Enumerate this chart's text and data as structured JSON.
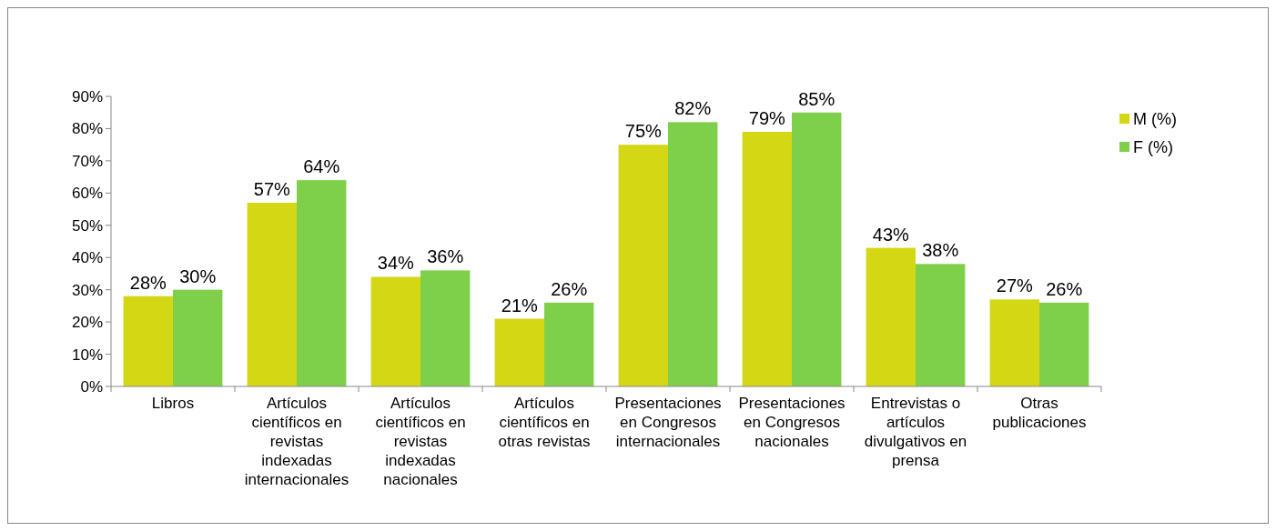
{
  "chart_data": {
    "type": "bar",
    "categories": [
      "Libros",
      "Artículos científicos en revistas indexadas internacionales",
      "Artículos científicos en revistas indexadas nacionales",
      "Artículos científicos en otras revistas",
      "Presentaciones en Congresos internacionales",
      "Presentaciones en Congresos nacionales",
      "Entrevistas o artículos divulgativos en prensa",
      "Otras publicaciones"
    ],
    "series": [
      {
        "name": "M (%)",
        "color": "#d4d714",
        "values": [
          28,
          57,
          34,
          21,
          75,
          79,
          43,
          27
        ],
        "value_labels": [
          "28%",
          "57%",
          "34%",
          "21%",
          "75%",
          "79%",
          "43%",
          "27%"
        ]
      },
      {
        "name": "F (%)",
        "color": "#7ed04b",
        "values": [
          30,
          64,
          36,
          26,
          82,
          85,
          38,
          26
        ],
        "value_labels": [
          "30%",
          "64%",
          "36%",
          "26%",
          "82%",
          "85%",
          "38%",
          "26%"
        ]
      }
    ],
    "ylim": [
      0,
      90
    ],
    "yticks": [
      {
        "value": 0,
        "label": "0%"
      },
      {
        "value": 10,
        "label": "10%"
      },
      {
        "value": 20,
        "label": "20%"
      },
      {
        "value": 30,
        "label": "30%"
      },
      {
        "value": 40,
        "label": "40%"
      },
      {
        "value": 50,
        "label": "50%"
      },
      {
        "value": 60,
        "label": "60%"
      },
      {
        "value": 70,
        "label": "70%"
      },
      {
        "value": 80,
        "label": "80%"
      },
      {
        "value": 90,
        "label": "90%"
      }
    ],
    "grid": false,
    "legend": "right"
  }
}
